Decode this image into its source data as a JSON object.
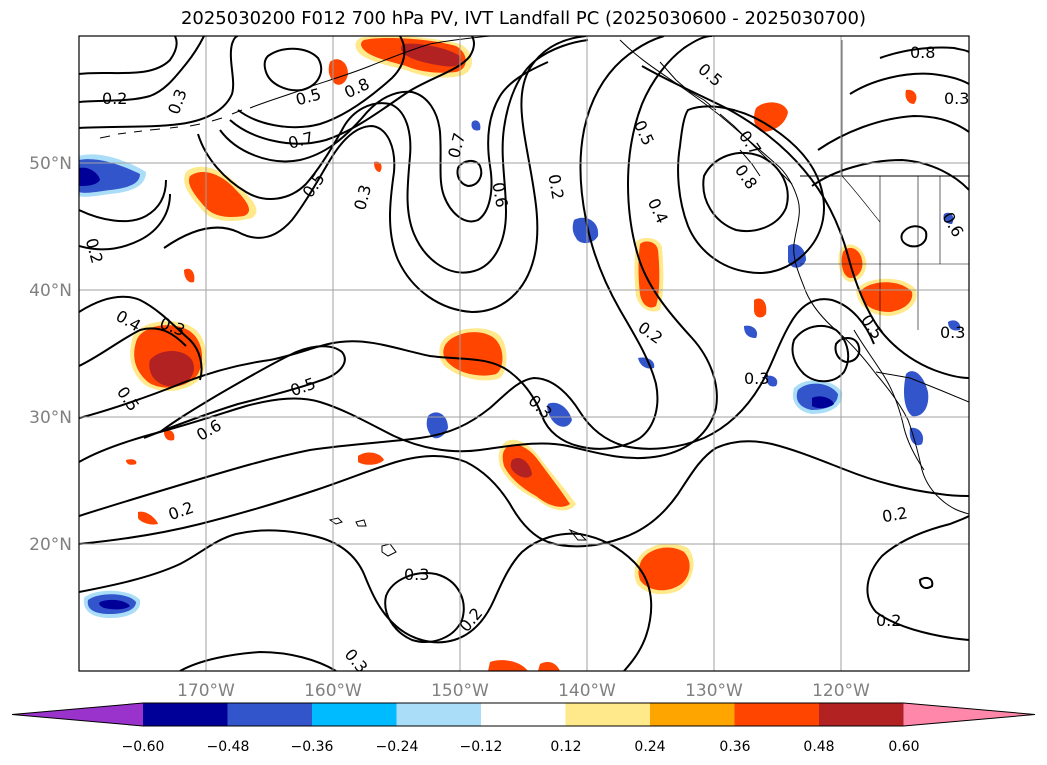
{
  "title": "2025030200 F012 700 hPa PV, IVT Landfall PC (2025030600 - 2025030700)",
  "latitude_labels": [
    "50°N",
    "40°N",
    "30°N",
    "20°N"
  ],
  "longitude_labels": [
    "170°W",
    "160°W",
    "150°W",
    "140°W",
    "130°W",
    "120°W"
  ],
  "contour_labels": [
    "0.2",
    "0.3",
    "0.5",
    "0.8",
    "0.7",
    "0.5",
    "0.7",
    "0.3",
    "0.6",
    "0.2",
    "0.5",
    "0.8",
    "0.7",
    "0.5",
    "0.4",
    "0.8",
    "0.6",
    "0.3",
    "0.4",
    "0.3",
    "0.2",
    "0.5",
    "0.5",
    "0.6",
    "0.3",
    "0.3",
    "0.2",
    "0.2",
    "0.3",
    "0.2",
    "0.2",
    "0.3",
    "0.2",
    "0.5",
    "0.3"
  ],
  "colorbar": {
    "ticks": [
      "−0.60",
      "−0.48",
      "−0.36",
      "−0.24",
      "−0.12",
      "0.12",
      "0.24",
      "0.36",
      "0.48",
      "0.60"
    ],
    "colors": [
      "#9933cc",
      "#000099",
      "#3355cc",
      "#00bbff",
      "#aadef8",
      "#ffffff",
      "#ffe98a",
      "#ffa500",
      "#ff4500",
      "#b22222",
      "#ff88aa"
    ]
  },
  "shading_colors": {
    "pos_low": "#ffe98a",
    "pos_mid": "#ffa500",
    "pos_high": "#ff4500",
    "pos_max": "#b22222",
    "neg_low": "#aadef8",
    "neg_mid": "#00bbff",
    "neg_high": "#3355cc",
    "neg_max": "#000099"
  }
}
